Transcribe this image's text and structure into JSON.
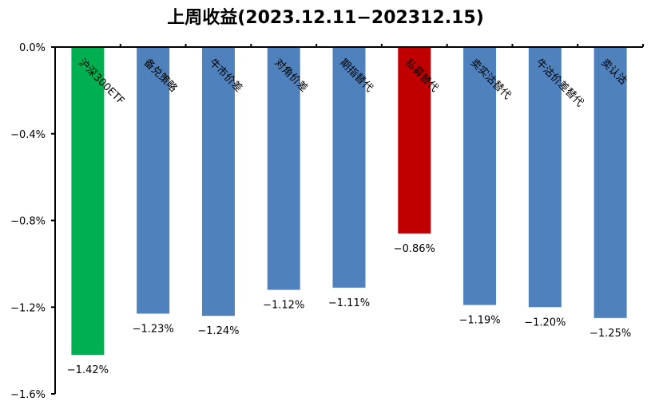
{
  "chart_data": {
    "type": "bar",
    "title": "上周收益(2023.12.11−202312.15)",
    "categories": [
      "沪深300ETF",
      "备兑策略",
      "牛市价差",
      "对角价差",
      "期指替代",
      "私募替代",
      "卖实沽替代",
      "牛沽价差替代",
      "卖认沽"
    ],
    "values": [
      -1.42,
      -1.23,
      -1.24,
      -1.12,
      -1.11,
      -0.86,
      -1.19,
      -1.2,
      -1.25
    ],
    "data_labels": [
      "−1.42%",
      "−1.23%",
      "−1.24%",
      "−1.12%",
      "−1.11%",
      "−0.86%",
      "−1.19%",
      "−1.20%",
      "−1.25%"
    ],
    "colors": [
      "#00B050",
      "#4F81BD",
      "#4F81BD",
      "#4F81BD",
      "#4F81BD",
      "#C00000",
      "#4F81BD",
      "#4F81BD",
      "#4F81BD"
    ],
    "yticks": [
      0.0,
      -0.4,
      -0.8,
      -1.2,
      -1.6
    ],
    "ytick_labels": [
      "0.0%",
      "−0.4%",
      "−0.8%",
      "−1.2%",
      "−1.6%"
    ],
    "ylim": [
      -1.6,
      0
    ],
    "xlabel": "",
    "ylabel": "",
    "grid": false,
    "legend": "none"
  }
}
